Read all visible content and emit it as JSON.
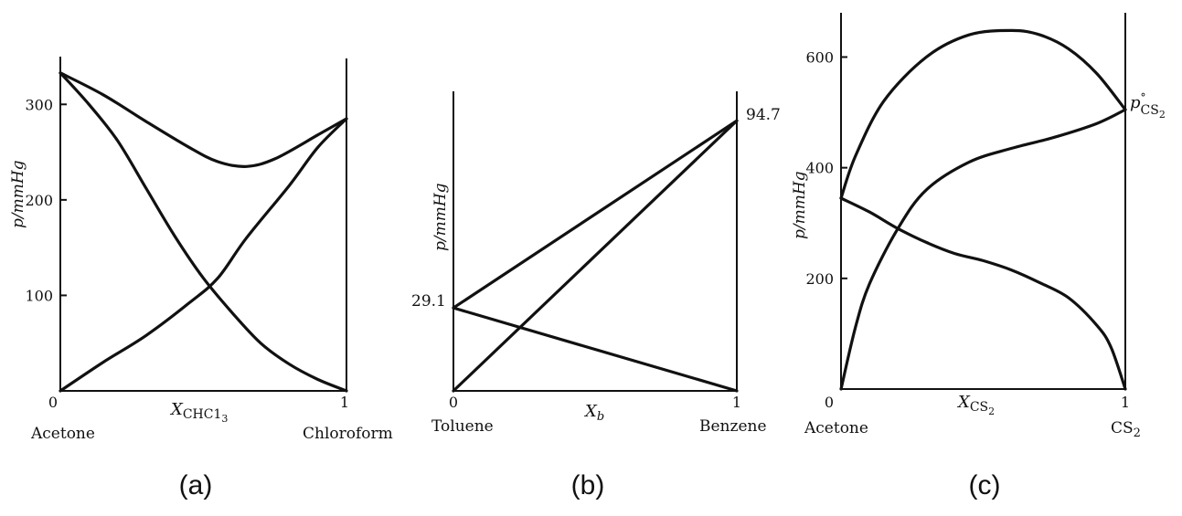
{
  "chart_data": [
    {
      "type": "line",
      "caption": "(a)",
      "ylabel": "p/mmHg",
      "xlabel": "X",
      "xlabel_sub": "CHC1",
      "xlabel_subsub": "3",
      "x_tick_labels": [
        "0",
        "1"
      ],
      "y_ticks": [
        100,
        200,
        300
      ],
      "component_left": "Acetone",
      "component_right": "Chloroform",
      "xlim": [
        0,
        1
      ],
      "ylim": [
        0,
        350
      ],
      "series": [
        {
          "x": [
            0,
            0.15,
            0.3,
            0.45,
            0.55,
            0.65,
            0.75,
            0.9,
            1
          ],
          "y": [
            333,
            310,
            282,
            255,
            240,
            235,
            243,
            268,
            285
          ]
        },
        {
          "x": [
            0,
            0.15,
            0.3,
            0.45,
            0.55,
            0.65,
            0.8,
            0.9,
            1
          ],
          "y": [
            0,
            30,
            58,
            92,
            118,
            160,
            215,
            255,
            285
          ]
        },
        {
          "x": [
            0,
            0.1,
            0.2,
            0.3,
            0.4,
            0.5,
            0.6,
            0.7,
            0.8,
            0.9,
            1
          ],
          "y": [
            333,
            300,
            262,
            212,
            162,
            118,
            82,
            50,
            28,
            12,
            0
          ]
        }
      ]
    },
    {
      "type": "line",
      "caption": "(b)",
      "ylabel": "p/mmHg",
      "xlabel": "X",
      "xlabel_sub": "b",
      "x_tick_labels": [
        "0",
        "1"
      ],
      "annotations": [
        "29.1",
        "94.7"
      ],
      "component_left": "Toluene",
      "component_right": "Benzene",
      "xlim": [
        0,
        1
      ],
      "ylim": [
        0,
        105
      ],
      "series": [
        {
          "x": [
            0,
            1
          ],
          "y": [
            29.1,
            94.7
          ]
        },
        {
          "x": [
            0,
            1
          ],
          "y": [
            0,
            94.7
          ]
        },
        {
          "x": [
            0,
            1
          ],
          "y": [
            29.1,
            0
          ]
        }
      ]
    },
    {
      "type": "line",
      "caption": "(c)",
      "ylabel": "p/mmHg",
      "xlabel": "X",
      "xlabel_sub": "CS",
      "xlabel_subsub": "2",
      "x_tick_labels": [
        "0",
        "1"
      ],
      "y_ticks": [
        200,
        400,
        600
      ],
      "annotation": {
        "p": "p",
        "degree": "°",
        "sub": "CS",
        "subsub": "2"
      },
      "component_left": "Acetone",
      "component_right": "CS",
      "component_right_sub": "2",
      "xlim": [
        0,
        1
      ],
      "ylim": [
        0,
        680
      ],
      "series": [
        {
          "x": [
            0,
            0.05,
            0.15,
            0.3,
            0.45,
            0.6,
            0.7,
            0.8,
            0.9,
            1
          ],
          "y": [
            345,
            420,
            520,
            600,
            640,
            648,
            640,
            615,
            570,
            505
          ]
        },
        {
          "x": [
            0,
            0.05,
            0.1,
            0.2,
            0.3,
            0.45,
            0.6,
            0.75,
            0.9,
            1
          ],
          "y": [
            0,
            110,
            190,
            290,
            360,
            410,
            435,
            455,
            480,
            505
          ]
        },
        {
          "x": [
            0,
            0.1,
            0.2,
            0.3,
            0.4,
            0.5,
            0.6,
            0.7,
            0.8,
            0.9,
            0.95,
            1
          ],
          "y": [
            345,
            320,
            290,
            265,
            245,
            232,
            215,
            192,
            165,
            115,
            75,
            0
          ]
        }
      ]
    }
  ]
}
